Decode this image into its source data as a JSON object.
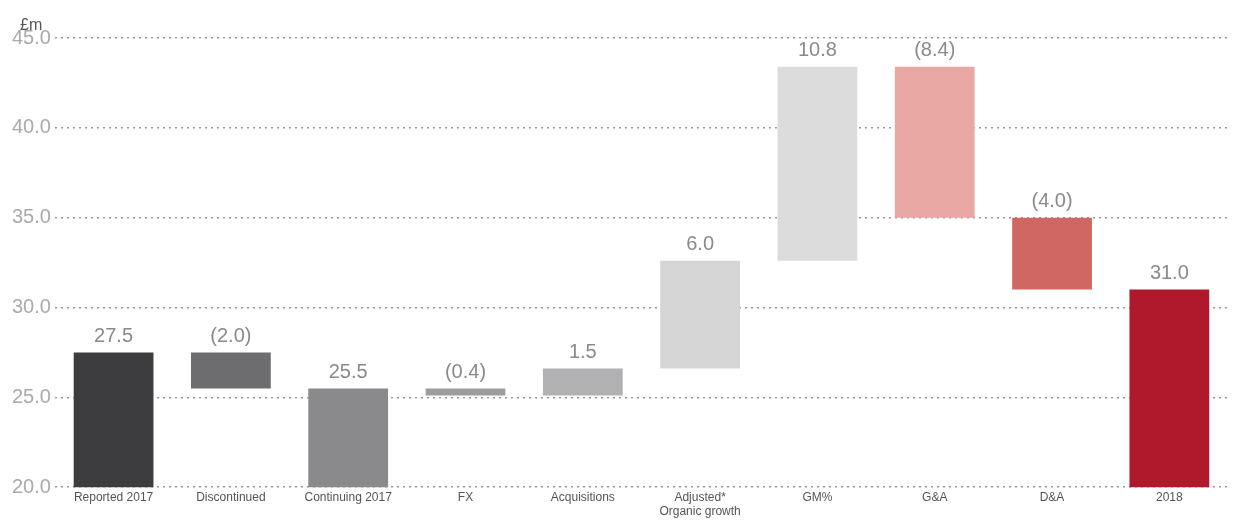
{
  "chart_data": {
    "type": "bar",
    "ylabel": "£m",
    "categories": [
      "Reported 2017",
      "Discontinued",
      "Continuing 2017",
      "FX",
      "Acquisitions",
      "Adjusted*\nOrganic growth",
      "GM%",
      "G&A",
      "D&A",
      "2018"
    ],
    "values": [
      27.5,
      -2.0,
      25.5,
      -0.4,
      1.5,
      6.0,
      10.8,
      -8.4,
      -4.0,
      31.0
    ],
    "base": [
      null,
      27.5,
      null,
      25.5,
      25.1,
      26.6,
      32.6,
      43.4,
      35.0,
      null
    ],
    "value_labels": [
      "27.5",
      "(2.0)",
      "25.5",
      "(0.4)",
      "1.5",
      "6.0",
      "10.8",
      "(8.4)",
      "(4.0)",
      "31.0"
    ],
    "colors": [
      "#3d3d3f",
      "#6d6d70",
      "#8a8a8d",
      "#9d9da0",
      "#b1b1b3",
      "#d5d5d6",
      "#dcdcdd",
      "#e9a7a3",
      "#d06763",
      "#b0182c"
    ],
    "ylim": [
      20,
      45
    ],
    "yticks": [
      {
        "value": 20,
        "label": "20.0"
      },
      {
        "value": 25,
        "label": "25.0"
      },
      {
        "value": 30,
        "label": "30.0"
      },
      {
        "value": 35,
        "label": "35.0"
      },
      {
        "value": 40,
        "label": "40.0"
      },
      {
        "value": 45,
        "label": "45.0"
      }
    ],
    "grid": "y",
    "legend": false
  }
}
